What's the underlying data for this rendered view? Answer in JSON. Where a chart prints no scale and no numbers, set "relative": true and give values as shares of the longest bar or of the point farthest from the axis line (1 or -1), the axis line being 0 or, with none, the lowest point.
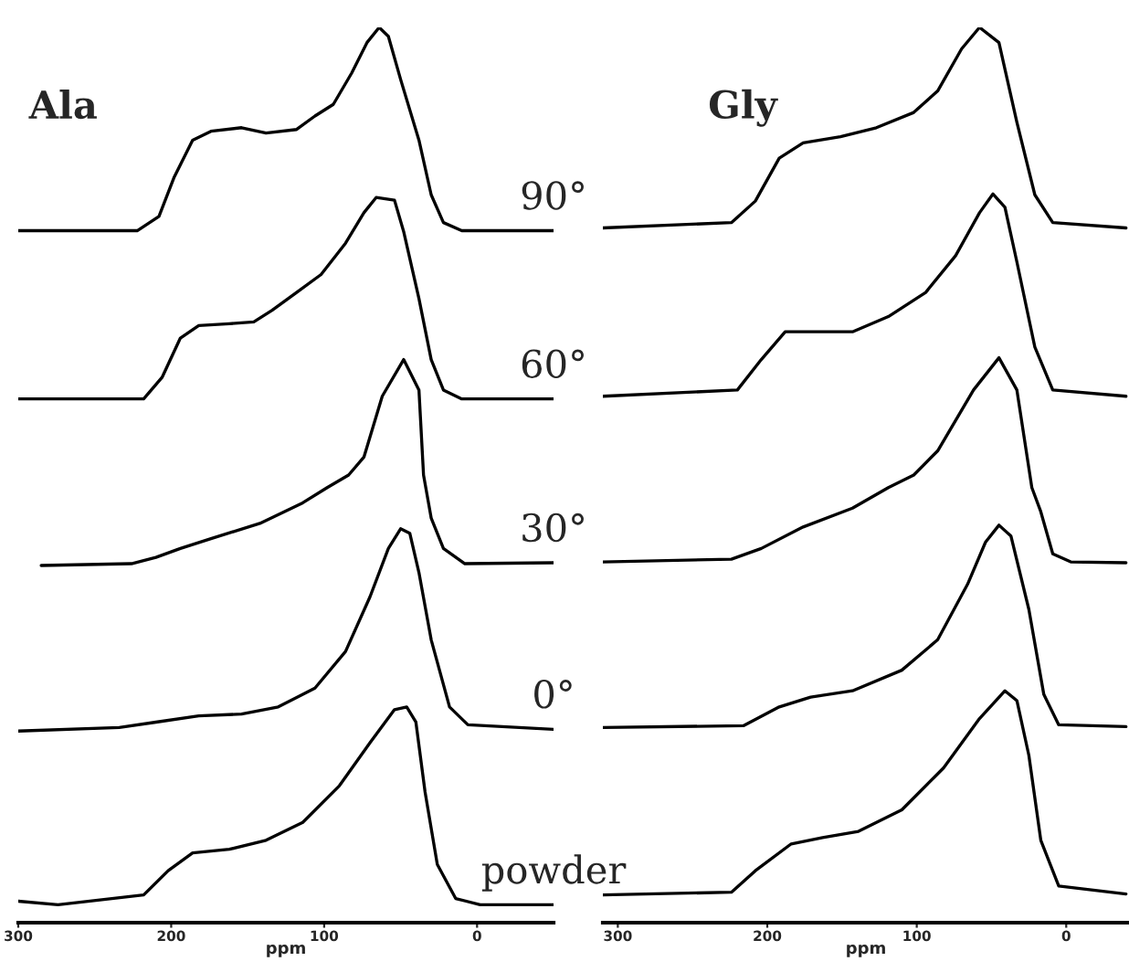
{
  "chart_data": [
    {
      "type": "line",
      "title": "Ala",
      "xlabel": "ppm",
      "xlim": [
        300,
        -50
      ],
      "xticks": [
        300,
        200,
        100,
        0
      ],
      "relative": true,
      "tick_labels": "x",
      "series": [
        {
          "name": "90°",
          "color": "#000000",
          "x": [
            300,
            222,
            208,
            198,
            186,
            174,
            154,
            138,
            118,
            106,
            94,
            82,
            72,
            64,
            58,
            50,
            38,
            30,
            22,
            10,
            -50
          ],
          "values": [
            0.773,
            0.773,
            0.789,
            0.833,
            0.874,
            0.884,
            0.888,
            0.882,
            0.886,
            0.901,
            0.914,
            0.949,
            0.983,
            1.0,
            0.99,
            0.942,
            0.874,
            0.813,
            0.782,
            0.773,
            0.773
          ]
        },
        {
          "name": "60°",
          "color": "#000000",
          "x": [
            300,
            218,
            206,
            194,
            182,
            162,
            146,
            134,
            118,
            102,
            86,
            74,
            66,
            54,
            48,
            38,
            30,
            22,
            10,
            -50
          ],
          "values": [
            0.585,
            0.585,
            0.609,
            0.653,
            0.667,
            0.669,
            0.671,
            0.684,
            0.704,
            0.724,
            0.759,
            0.793,
            0.81,
            0.807,
            0.772,
            0.697,
            0.629,
            0.595,
            0.585,
            0.585
          ]
        },
        {
          "name": "30°",
          "color": "#000000",
          "x": [
            285,
            226,
            210,
            194,
            174,
            142,
            114,
            98,
            84,
            74,
            62,
            48,
            38,
            35,
            30,
            22,
            8,
            -50
          ],
          "values": [
            0.399,
            0.401,
            0.408,
            0.418,
            0.429,
            0.446,
            0.469,
            0.486,
            0.5,
            0.52,
            0.588,
            0.629,
            0.595,
            0.5,
            0.452,
            0.418,
            0.401,
            0.402
          ]
        },
        {
          "name": "0°",
          "color": "#000000",
          "x": [
            300,
            234,
            210,
            182,
            154,
            130,
            106,
            86,
            70,
            58,
            50,
            44,
            38,
            30,
            18,
            6,
            -50
          ],
          "values": [
            0.214,
            0.218,
            0.224,
            0.231,
            0.233,
            0.241,
            0.262,
            0.303,
            0.364,
            0.418,
            0.44,
            0.435,
            0.391,
            0.316,
            0.241,
            0.221,
            0.216
          ]
        },
        {
          "name": "powder",
          "color": "#000000",
          "x": [
            300,
            274,
            218,
            202,
            186,
            162,
            138,
            114,
            90,
            70,
            54,
            46,
            40,
            34,
            26,
            14,
            -2,
            -50
          ],
          "values": [
            0.024,
            0.02,
            0.031,
            0.058,
            0.078,
            0.082,
            0.092,
            0.112,
            0.153,
            0.201,
            0.238,
            0.241,
            0.224,
            0.146,
            0.065,
            0.027,
            0.02,
            0.02
          ]
        }
      ]
    },
    {
      "type": "line",
      "title": "Gly",
      "xlabel": "ppm",
      "xlim": [
        310,
        -42
      ],
      "xticks": [
        300,
        200,
        100,
        0
      ],
      "relative": true,
      "tick_labels": "x",
      "series": [
        {
          "color": "#000000",
          "x": [
            310,
            224,
            208,
            192,
            176,
            151,
            127,
            102,
            86,
            70,
            58,
            45,
            33,
            21,
            9,
            -40
          ],
          "values": [
            0.776,
            0.782,
            0.806,
            0.854,
            0.871,
            0.878,
            0.888,
            0.905,
            0.929,
            0.976,
            1.0,
            0.983,
            0.894,
            0.813,
            0.782,
            0.776
          ]
        },
        {
          "color": "#000000",
          "x": [
            310,
            220,
            204,
            188,
            163,
            143,
            119,
            94,
            74,
            58,
            49,
            41,
            33,
            21,
            9,
            -40
          ],
          "values": [
            0.588,
            0.595,
            0.629,
            0.66,
            0.66,
            0.66,
            0.677,
            0.704,
            0.745,
            0.793,
            0.814,
            0.799,
            0.738,
            0.643,
            0.595,
            0.588
          ]
        },
        {
          "color": "#000000",
          "x": [
            310,
            224,
            204,
            176,
            143,
            119,
            102,
            86,
            62,
            45,
            33,
            23,
            17,
            9,
            -3,
            -40
          ],
          "values": [
            0.403,
            0.406,
            0.418,
            0.442,
            0.463,
            0.486,
            0.5,
            0.527,
            0.595,
            0.631,
            0.595,
            0.486,
            0.459,
            0.412,
            0.403,
            0.402
          ]
        },
        {
          "color": "#000000",
          "x": [
            310,
            216,
            192,
            171,
            143,
            110,
            86,
            66,
            54,
            45,
            37,
            25,
            15,
            5,
            -40
          ],
          "values": [
            0.218,
            0.22,
            0.241,
            0.252,
            0.259,
            0.282,
            0.316,
            0.378,
            0.425,
            0.444,
            0.432,
            0.35,
            0.255,
            0.221,
            0.219
          ]
        },
        {
          "color": "#000000",
          "x": [
            310,
            224,
            208,
            184,
            163,
            139,
            110,
            82,
            58,
            41,
            33,
            25,
            17,
            5,
            -40
          ],
          "values": [
            0.031,
            0.034,
            0.058,
            0.088,
            0.095,
            0.102,
            0.126,
            0.173,
            0.228,
            0.259,
            0.248,
            0.187,
            0.092,
            0.041,
            0.032
          ]
        }
      ]
    }
  ]
}
